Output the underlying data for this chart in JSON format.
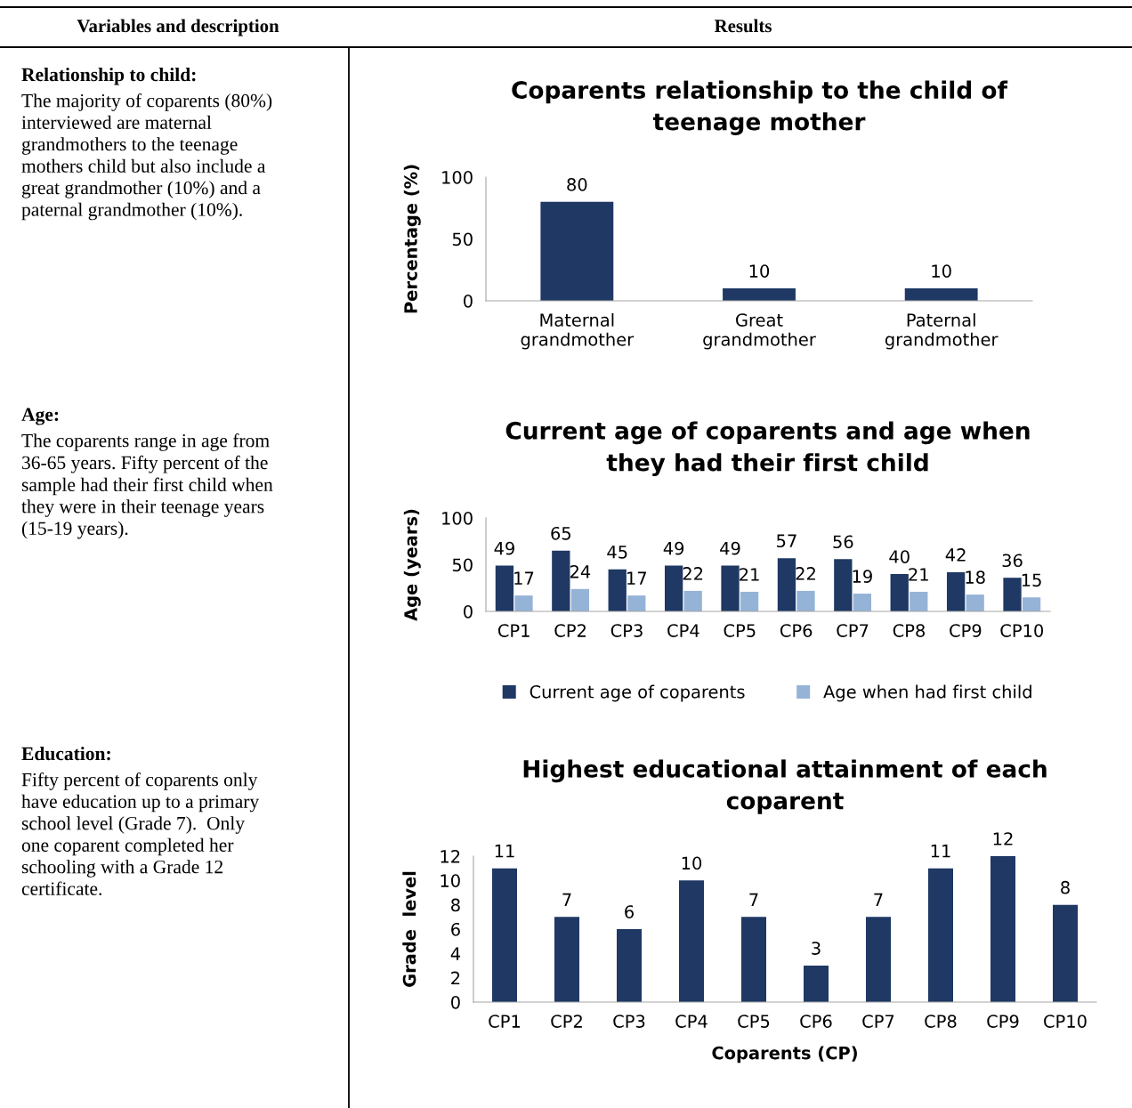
{
  "chart_data": [
    {
      "type": "other",
      "title": "Variables and description",
      "annotations": [
        "Relationship to child:",
        "The majority of coparents (80%)\ninterviewed are maternal\ngrandmothers to the teenage\nmothers child but also include a\ngreat grandmother (10%) and a\npaternal grandmother (10%).",
        "Age:",
        "The coparents range in age from\n36-65 years. Fifty percent of the\nsample had their first child when\nthey were in their teenage years\n(15-19 years).",
        "Education:",
        "Fifty percent of coparents only\nhave education up to a primary\nschool level (Grade 7).  Only\none coparent completed her\nschooling with a Grade 12\ncertificate."
      ]
    },
    {
      "type": "other",
      "title": "Results"
    },
    {
      "type": "bar",
      "title": "Coparents relationship to the child of\nteenage mother",
      "ylabel": "Percentage (%)",
      "categories": [
        "Maternal\ngrandmother",
        "Great\ngrandmother",
        "Paternal\ngrandmother"
      ],
      "values": [
        80,
        10,
        10
      ],
      "color": "#1f3864",
      "ylim": [
        0,
        100
      ],
      "yticks": [
        0,
        50,
        100
      ],
      "data_labels": true,
      "grid": false,
      "legend": false
    },
    {
      "type": "bar",
      "title": "Current age of coparents and age when\nthey had their first child",
      "ylabel": "Age (years)",
      "categories": [
        "CP1",
        "CP2",
        "CP3",
        "CP4",
        "CP5",
        "CP6",
        "CP7",
        "CP8",
        "CP9",
        "CP10"
      ],
      "series": [
        {
          "name": "Current age of coparents",
          "color": "#1f3864",
          "values": [
            49,
            65,
            45,
            49,
            49,
            57,
            56,
            40,
            42,
            36
          ]
        },
        {
          "name": "Age when had first child",
          "color": "#95b3d7",
          "values": [
            17,
            24,
            17,
            22,
            21,
            22,
            19,
            21,
            18,
            15
          ]
        }
      ],
      "ylim": [
        0,
        100
      ],
      "yticks": [
        0,
        50,
        100
      ],
      "data_labels": true,
      "grid": false,
      "legend": "bottom"
    },
    {
      "type": "bar",
      "title": "Highest educational attainment of each\ncoparent",
      "xlabel": "Coparents (CP)",
      "ylabel": "Grade  level",
      "categories": [
        "CP1",
        "CP2",
        "CP3",
        "CP4",
        "CP5",
        "CP6",
        "CP7",
        "CP8",
        "CP9",
        "CP10"
      ],
      "values": [
        11,
        7,
        6,
        10,
        7,
        3,
        7,
        11,
        12,
        8
      ],
      "color": "#1f3864",
      "ylim": [
        0,
        12
      ],
      "yticks": [
        0,
        2,
        4,
        6,
        8,
        10,
        12
      ],
      "data_labels": true,
      "grid": false,
      "legend": false
    }
  ]
}
